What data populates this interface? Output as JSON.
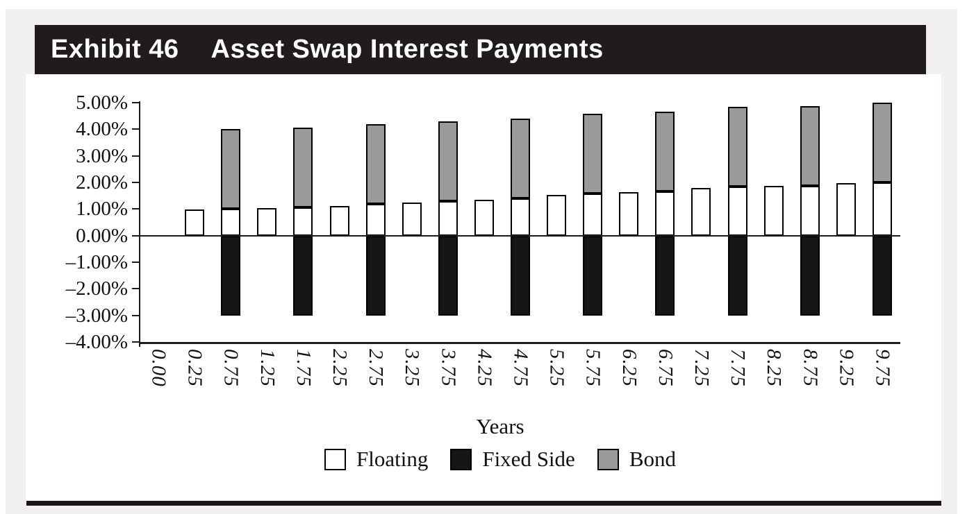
{
  "header": {
    "exhibit_label": "Exhibit 46",
    "title": "Asset Swap Interest Payments"
  },
  "chart_data": {
    "type": "bar",
    "stacked": true,
    "grid": false,
    "legend_position": "bottom",
    "xlabel": "Years",
    "x_axis_type": "category",
    "categories": [
      "0.00",
      "0.25",
      "0.75",
      "1.25",
      "1.75",
      "2.25",
      "2.75",
      "3.25",
      "3.75",
      "4.25",
      "4.75",
      "5.25",
      "5.75",
      "6.25",
      "6.75",
      "7.25",
      "7.75",
      "8.25",
      "8.75",
      "9.25",
      "9.75"
    ],
    "series": [
      {
        "name": "Floating",
        "color": "#FFFFFF",
        "values": [
          null,
          0.97,
          1.0,
          1.04,
          1.07,
          1.11,
          1.18,
          1.25,
          1.29,
          1.35,
          1.39,
          1.54,
          1.58,
          1.64,
          1.65,
          1.8,
          1.85,
          1.86,
          1.88,
          1.98,
          2.0
        ]
      },
      {
        "name": "Fixed Side",
        "color": "#161616",
        "values": [
          null,
          null,
          -3.0,
          null,
          -3.0,
          null,
          -3.0,
          null,
          -3.0,
          null,
          -3.0,
          null,
          -3.0,
          null,
          -3.0,
          null,
          -3.0,
          null,
          -3.0,
          null,
          -3.0
        ]
      },
      {
        "name": "Bond",
        "color": "#9A9A9A",
        "values": [
          null,
          null,
          3.0,
          null,
          3.0,
          null,
          3.0,
          null,
          3.0,
          null,
          3.0,
          null,
          3.0,
          null,
          3.0,
          null,
          3.0,
          null,
          3.0,
          null,
          3.0
        ]
      }
    ],
    "ylim": [
      -4,
      5
    ],
    "y_ticks": [
      {
        "value": 5,
        "label": "5.00%"
      },
      {
        "value": 4,
        "label": "4.00%"
      },
      {
        "value": 3,
        "label": "3.00%"
      },
      {
        "value": 2,
        "label": "2.00%"
      },
      {
        "value": 1,
        "label": "1.00%"
      },
      {
        "value": 0,
        "label": "0.00%"
      },
      {
        "value": -1,
        "label": "–1.00%"
      },
      {
        "value": -2,
        "label": "–2.00%"
      },
      {
        "value": -3,
        "label": "–3.00%"
      },
      {
        "value": -4,
        "label": "–4.00%"
      }
    ]
  },
  "colors": {
    "title_bar_bg": "#201C1D",
    "title_text": "#FFFFFF",
    "page_bg": "#F1EFEF",
    "card_bg": "#FFFFFF",
    "axis": "#1C1C1C",
    "bar_border": "#000000",
    "bottom_rule": "#1A1516"
  }
}
